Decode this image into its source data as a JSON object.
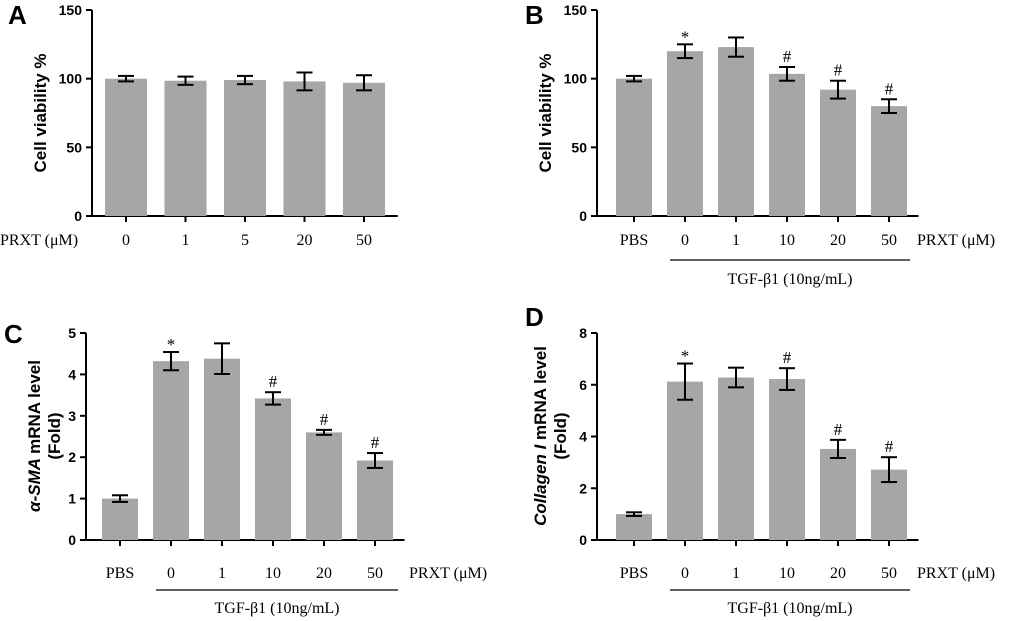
{
  "chart_data": [
    {
      "panel": "A",
      "type": "bar",
      "ylabel_main": "Cell viability %",
      "ylabel_italic": "",
      "ylabel_sub": "",
      "ylim": [
        0,
        150
      ],
      "yticks": [
        0,
        50,
        100,
        150
      ],
      "xprefix": "PRXT (μM)",
      "xsuffix": "",
      "categories": [
        "0",
        "1",
        "5",
        "20",
        "50"
      ],
      "values": [
        100,
        98.5,
        99,
        98,
        97
      ],
      "errors": [
        2,
        3,
        3,
        6.5,
        5.5
      ],
      "annotations": [
        "",
        "",
        "",
        "",
        ""
      ],
      "bracket_label": ""
    },
    {
      "panel": "B",
      "type": "bar",
      "ylabel_main": "Cell viability %",
      "ylabel_italic": "",
      "ylabel_sub": "",
      "ylim": [
        0,
        150
      ],
      "yticks": [
        0,
        50,
        100,
        150
      ],
      "xprefix": "",
      "xsuffix": "PRXT (μM)",
      "categories": [
        "PBS",
        "0",
        "1",
        "10",
        "20",
        "50"
      ],
      "values": [
        100,
        120,
        123,
        103.5,
        92,
        80
      ],
      "errors": [
        2,
        5,
        7,
        5,
        6.5,
        5
      ],
      "annotations": [
        "",
        "*",
        "",
        "#",
        "#",
        "#"
      ],
      "bracket_label": "TGF-β1 (10ng/mL)"
    },
    {
      "panel": "C",
      "type": "bar",
      "ylabel_main": "mRNA level",
      "ylabel_italic": "α-SMA",
      "ylabel_sub": "(Fold)",
      "ylim": [
        0,
        5
      ],
      "yticks": [
        0,
        1,
        2,
        3,
        4,
        5
      ],
      "xprefix": "",
      "xsuffix": "PRXT (μM)",
      "categories": [
        "PBS",
        "0",
        "1",
        "10",
        "20",
        "50"
      ],
      "values": [
        1,
        4.32,
        4.38,
        3.42,
        2.6,
        1.92
      ],
      "errors": [
        0.08,
        0.22,
        0.37,
        0.15,
        0.06,
        0.18
      ],
      "annotations": [
        "",
        "*",
        "",
        "#",
        "#",
        "#"
      ],
      "bracket_label": "TGF-β1 (10ng/mL)"
    },
    {
      "panel": "D",
      "type": "bar",
      "ylabel_main": "mRNA level",
      "ylabel_italic": "Collagen I",
      "ylabel_sub": "(Fold)",
      "ylim": [
        0,
        8
      ],
      "yticks": [
        0,
        2,
        4,
        6,
        8
      ],
      "xprefix": "",
      "xsuffix": "PRXT (μM)",
      "categories": [
        "PBS",
        "0",
        "1",
        "10",
        "20",
        "50"
      ],
      "values": [
        1,
        6.12,
        6.28,
        6.22,
        3.52,
        2.72
      ],
      "errors": [
        0.07,
        0.7,
        0.38,
        0.42,
        0.35,
        0.48
      ],
      "annotations": [
        "",
        "*",
        "",
        "#",
        "#",
        "#"
      ],
      "bracket_label": "TGF-β1 (10ng/mL)"
    }
  ]
}
